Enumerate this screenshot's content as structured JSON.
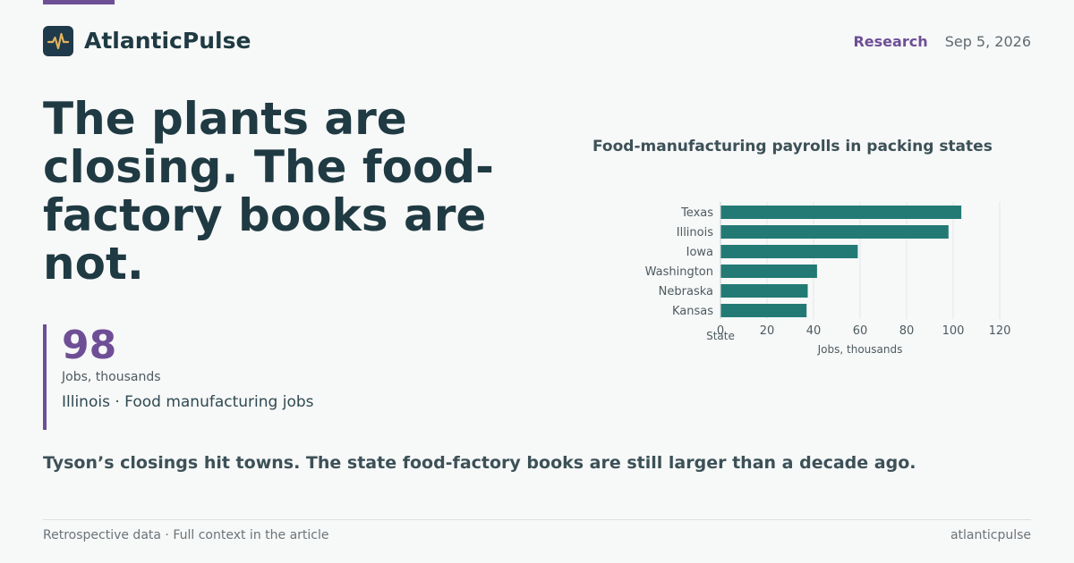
{
  "brand": {
    "name": "AtlanticPulse",
    "logo_icon": "pulse-waveform-icon",
    "accent_color": "#6e4f96"
  },
  "header": {
    "section": "Research",
    "date": "Sep 5, 2026"
  },
  "headline": "The plants are closing. The food-factory books are not.",
  "stat": {
    "value": "98",
    "unit": "Jobs, thousands",
    "label": "Illinois · Food manufacturing jobs"
  },
  "subhead": "Tyson’s closings hit towns. The state food-factory books are still larger than a decade ago.",
  "footer": {
    "left": "Retrospective data · Full context in the article",
    "right": "atlanticpulse"
  },
  "chart_data": {
    "type": "bar",
    "orientation": "horizontal",
    "title": "Food-manufacturing payrolls in packing states",
    "categories": [
      "Texas",
      "Illinois",
      "Iowa",
      "Washington",
      "Nebraska",
      "Kansas"
    ],
    "values": [
      103.5,
      98,
      59,
      41.5,
      37.5,
      37
    ],
    "xlabel": "Jobs, thousands",
    "ylabel": "State",
    "xlim": [
      0,
      120
    ],
    "xticks": [
      0,
      20,
      40,
      60,
      80,
      100,
      120
    ],
    "grid": true,
    "bar_color": "#237a74"
  }
}
